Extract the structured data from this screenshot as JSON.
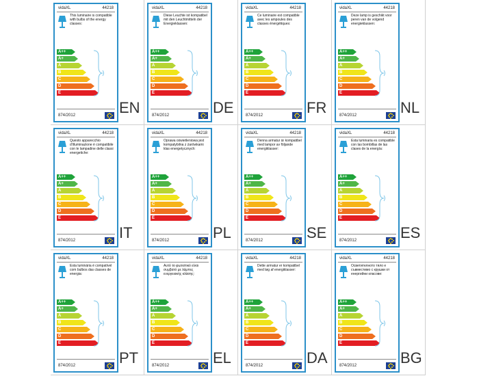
{
  "cards": [
    {
      "brand": "vidaXL",
      "code": "44218",
      "text": "This luminaire is compatible with bulbs of the energy classes:",
      "reg": "874/2012",
      "lang": "EN"
    },
    {
      "brand": "vidaXL",
      "code": "44218",
      "text": "Diese Leuchte ist kompatibel mit den Leuchtmitteln der Energieklassen:",
      "reg": "874/2012",
      "lang": "DE"
    },
    {
      "brand": "vidaXL",
      "code": "44218",
      "text": "Ce luminaire est compatible avec les ampoules des classes énergétiques:",
      "reg": "874/2012",
      "lang": "FR"
    },
    {
      "brand": "vidaXL",
      "code": "44218",
      "text": "Deze lamp is geschikt voor peren van de volgend energieklassen:",
      "reg": "874/2012",
      "lang": "NL"
    },
    {
      "brand": "vidaXL",
      "code": "44218",
      "text": "Questo apparecchio d'illuminazione è compatibile con le lampadine delle classi energetiche:",
      "reg": "874/2012",
      "lang": "IT"
    },
    {
      "brand": "vidaXL",
      "code": "44218",
      "text": "Oprawa oświetleniowa jest kompatybilna z żarówkami klas energetycznych:",
      "reg": "874/2012",
      "lang": "PL"
    },
    {
      "brand": "vidaXL",
      "code": "44218",
      "text": "Denna armatur är kompatibel med lampor av följande energiklasser:",
      "reg": "874/2012",
      "lang": "SE"
    },
    {
      "brand": "vidaXL",
      "code": "44218",
      "text": "Esta luminaria es compatible con las bombillas de las clases de la energía:",
      "reg": "874/2012",
      "lang": "ES"
    },
    {
      "brand": "vidaXL",
      "code": "44218",
      "text": "Esta luminária é compatível com bulbos das classes de energia:",
      "reg": "874/2012",
      "lang": "PT"
    },
    {
      "brand": "vidaXL",
      "code": "44218",
      "text": "Αυτό το φωτιστικό είναι συμβατό με λάμπες ενεργειακής κλάσης:",
      "reg": "874/2012",
      "lang": "EL"
    },
    {
      "brand": "vidaXL",
      "code": "44218",
      "text": "Dette armatur er kompatibel med løg af energiklasser:",
      "reg": "874/2012",
      "lang": "DA"
    },
    {
      "brand": "vidaXL",
      "code": "44218",
      "text": "Осветителното тяло е съвместимо с крушки от енергийни класове:",
      "reg": "874/2012",
      "lang": "BG"
    }
  ],
  "energy_classes": [
    {
      "label": "A++",
      "color": "#1fa33a"
    },
    {
      "label": "A+",
      "color": "#4fb648"
    },
    {
      "label": "A",
      "color": "#b7d433"
    },
    {
      "label": "B",
      "color": "#f0e51a"
    },
    {
      "label": "C",
      "color": "#f6b319"
    },
    {
      "label": "D",
      "color": "#ee6f1f"
    },
    {
      "label": "E",
      "color": "#e31d23"
    }
  ],
  "icons": {
    "lamp": "table-lamp-icon",
    "eu": "eu-flag-icon",
    "bracket": "curly-bracket-icon"
  }
}
